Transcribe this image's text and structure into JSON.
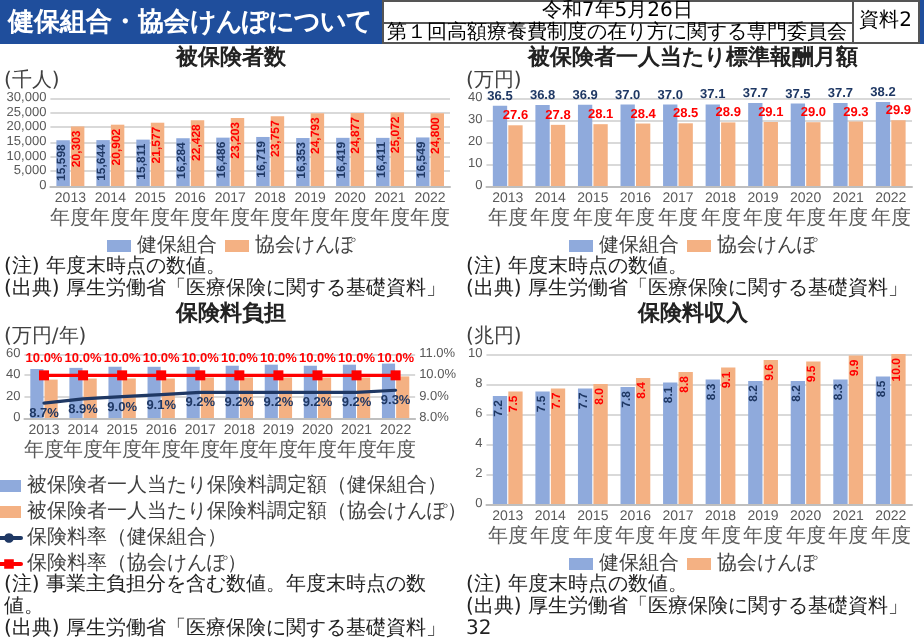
{
  "chart_data": [
    {
      "type": "bar",
      "title": "被保険者数",
      "ylabel": "(千人)",
      "categories": [
        "2013年度",
        "2014年度",
        "2015年度",
        "2016年度",
        "2017年度",
        "2018年度",
        "2019年度",
        "2020年度",
        "2021年度",
        "2022年度"
      ],
      "series": [
        {
          "name": "健保組合",
          "color": "#8faadc",
          "values": [
            15598,
            15644,
            15811,
            16284,
            16486,
            16719,
            16353,
            16419,
            16411,
            16549
          ],
          "value_labels": [
            "15,598",
            "15,644",
            "15,811",
            "16,284",
            "16,486",
            "16,719",
            "16,353",
            "16,419",
            "16,411",
            "16,549"
          ]
        },
        {
          "name": "協会けんぽ",
          "color": "#f4b183",
          "values": [
            20303,
            20902,
            21577,
            22428,
            23203,
            23757,
            24793,
            24877,
            25072,
            24800
          ],
          "value_labels": [
            "20,303",
            "20,902",
            "21,577",
            "22,428",
            "23,203",
            "23,757",
            "24,793",
            "24,877",
            "25,072",
            "24,800"
          ]
        }
      ],
      "ylim": [
        0,
        30000
      ],
      "yticks": [
        0,
        {
          "value": 5000,
          "label": "5,000"
        },
        {
          "value": 10000,
          "label": "10,000"
        },
        {
          "value": 15000,
          "label": "15,000"
        },
        {
          "value": 20000,
          "label": "20,000"
        },
        {
          "value": 25000,
          "label": "25,000"
        },
        {
          "value": 30000,
          "label": "30,000"
        }
      ],
      "grid": "y",
      "legend": "bottom",
      "annotations": [
        "健保組合・協会けんぽについて",
        "令和7年5月26日",
        "第１回高額療養費制度の在り方に関する専門委員会",
        "資料2",
        "(注) 年度末時点の数値。",
        "(出典) 厚生労働省「医療保険に関する基礎資料」"
      ]
    },
    {
      "type": "bar",
      "title": "被保険者一人当たり標準報酬月額",
      "ylabel": "(万円)",
      "categories": [
        "2013年度",
        "2014年度",
        "2015年度",
        "2016年度",
        "2017年度",
        "2018年度",
        "2019年度",
        "2020年度",
        "2021年度",
        "2022年度"
      ],
      "series": [
        {
          "name": "健保組合",
          "color": "#8faadc",
          "values": [
            36.5,
            36.8,
            36.9,
            37.0,
            37.0,
            37.1,
            37.7,
            37.5,
            37.7,
            38.2
          ],
          "value_labels": [
            "36.5",
            "36.8",
            "36.9",
            "37.0",
            "37.0",
            "37.1",
            "37.7",
            "37.5",
            "37.7",
            "38.2"
          ]
        },
        {
          "name": "協会けんぽ",
          "color": "#f4b183",
          "values": [
            27.6,
            27.8,
            28.1,
            28.4,
            28.5,
            28.9,
            29.1,
            29.0,
            29.3,
            29.9
          ],
          "value_labels": [
            "27.6",
            "27.8",
            "28.1",
            "28.4",
            "28.5",
            "28.9",
            "29.1",
            "29.0",
            "29.3",
            "29.9"
          ]
        }
      ],
      "ylim": [
        0,
        40
      ],
      "yticks": [
        0,
        10,
        20,
        30,
        40
      ],
      "grid": "y",
      "legend": "bottom",
      "annotations": [
        "(注) 年度末時点の数値。",
        "(出典) 厚生労働省「医療保険に関する基礎資料」"
      ]
    },
    {
      "type": "bar",
      "title": "保険料負担",
      "ylabel": "(万円/年)",
      "categories": [
        "2013年度",
        "2014年度",
        "2015年度",
        "2016年度",
        "2017年度",
        "2018年度",
        "2019年度",
        "2020年度",
        "2021年度",
        "2022年度"
      ],
      "series": [
        {
          "name": "被保険者一人当たり保険料調定額（健保組合）",
          "color": "#8faadc",
          "values": [
            46,
            47,
            48,
            48,
            48,
            49,
            50,
            49,
            50,
            51
          ]
        },
        {
          "name": "被保険者一人当たり保険料調定額（協会けんぽ）",
          "color": "#f4b183",
          "values": [
            36,
            37,
            37,
            37,
            38,
            38,
            38,
            38,
            38,
            39
          ]
        },
        {
          "name": "保険料率（健保組合）",
          "type": "line",
          "axis": "y2",
          "color": "#1f3864",
          "marker": "none",
          "values": [
            8.7,
            8.9,
            9.0,
            9.1,
            9.2,
            9.2,
            9.2,
            9.2,
            9.2,
            9.3
          ],
          "value_labels": [
            "8.7%",
            "8.9%",
            "9.0%",
            "9.1%",
            "9.2%",
            "9.2%",
            "9.2%",
            "9.2%",
            "9.2%",
            "9.3%"
          ]
        },
        {
          "name": "保険料率（協会けんぽ）",
          "type": "line",
          "axis": "y2",
          "color": "#ff0000",
          "marker": "square",
          "values": [
            10.0,
            10.0,
            10.0,
            10.0,
            10.0,
            10.0,
            10.0,
            10.0,
            10.0,
            10.0
          ],
          "value_labels": [
            "10.0%",
            "10.0%",
            "10.0%",
            "10.0%",
            "10.0%",
            "10.0%",
            "10.0%",
            "10.0%",
            "10.0%",
            "10.0%"
          ]
        }
      ],
      "ylim": [
        0,
        60
      ],
      "yticks": [
        0,
        20,
        40,
        60
      ],
      "y2lim": [
        8,
        11
      ],
      "y2ticks": [
        {
          "value": 8,
          "label": "8.0%"
        },
        {
          "value": 9,
          "label": "9.0%"
        },
        {
          "value": 10,
          "label": "10.0%"
        },
        {
          "value": 11,
          "label": "11.0%"
        }
      ],
      "grid": "y",
      "legend": "bottom",
      "annotations": [
        "(注) 事業主負担分を含む数値。年度末時点の数値。",
        "(出典) 厚生労働省「医療保険に関する基礎資料」"
      ]
    },
    {
      "type": "bar",
      "title": "保険料収入",
      "ylabel": "(兆円)",
      "categories": [
        "2013年度",
        "2014年度",
        "2015年度",
        "2016年度",
        "2017年度",
        "2018年度",
        "2019年度",
        "2020年度",
        "2021年度",
        "2022年度"
      ],
      "series": [
        {
          "name": "健保組合",
          "color": "#8faadc",
          "values": [
            7.2,
            7.5,
            7.7,
            7.8,
            8.1,
            8.3,
            8.2,
            8.2,
            8.3,
            8.5
          ],
          "value_labels": [
            "7.2",
            "7.5",
            "7.7",
            "7.8",
            "8.1",
            "8.3",
            "8.2",
            "8.2",
            "8.3",
            "8.5"
          ]
        },
        {
          "name": "協会けんぽ",
          "color": "#f4b183",
          "values": [
            7.5,
            7.7,
            8.0,
            8.4,
            8.8,
            9.1,
            9.6,
            9.5,
            9.9,
            10.0
          ],
          "value_labels": [
            "7.5",
            "7.7",
            "8.0",
            "8.4",
            "8.8",
            "9.1",
            "9.6",
            "9.5",
            "9.9",
            "10.0"
          ]
        }
      ],
      "ylim": [
        0,
        10
      ],
      "yticks": [
        0,
        2,
        4,
        6,
        8,
        10
      ],
      "grid": "y",
      "legend": "bottom",
      "annotations": [
        "(注) 年度末時点の数値。",
        "(出典) 厚生労働省「医療保険に関する基礎資料」",
        "32"
      ]
    }
  ]
}
